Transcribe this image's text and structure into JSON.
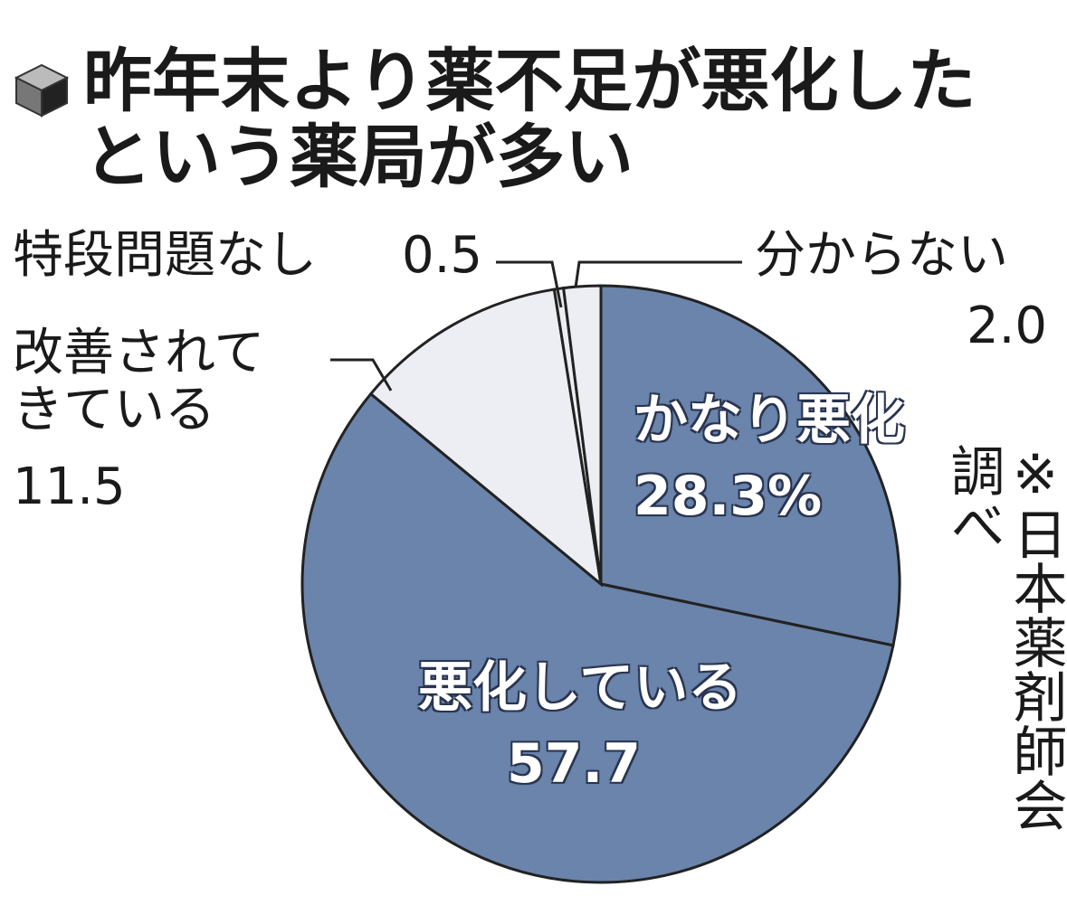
{
  "chart_data": {
    "type": "pie",
    "title": "昨年末より薬不足が悪化したという薬局が多い",
    "categories": [
      "かなり悪化",
      "悪化している",
      "改善されてきている",
      "特段問題なし",
      "分からない"
    ],
    "values": [
      28.3,
      57.7,
      11.5,
      0.5,
      2.0
    ],
    "value_labels": [
      "28.3%",
      "57.7",
      "11.5",
      "0.5",
      "2.0"
    ],
    "colors": [
      "#6a84ab",
      "#6a84ab",
      "#eceef3",
      "#eceef3",
      "#eceef3"
    ],
    "note": "※日本薬剤師会調べ"
  }
}
